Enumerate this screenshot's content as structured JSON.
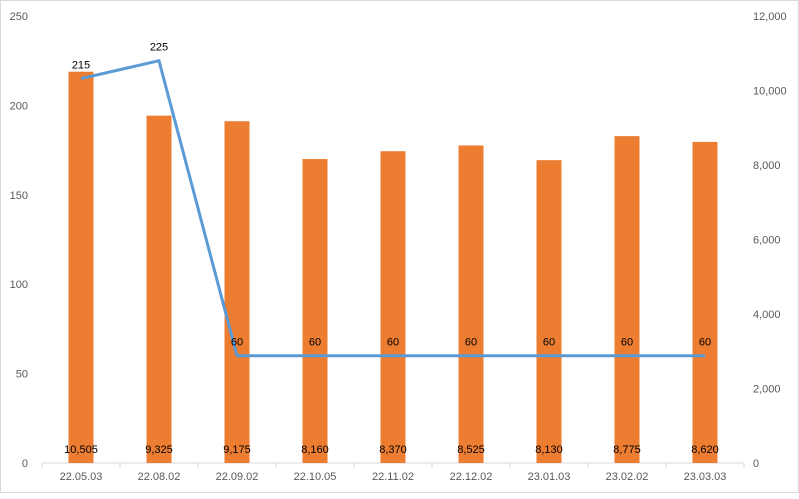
{
  "chart_data": {
    "type": "bar",
    "categories": [
      "22.05.03",
      "22.08.02",
      "22.09.02",
      "22.10.05",
      "22.11.02",
      "22.12.02",
      "23.01.03",
      "23.02.02",
      "23.03.03"
    ],
    "series": [
      {
        "type": "bar",
        "axis": "right",
        "color": "#ED7D31",
        "values": [
          10505,
          9325,
          9175,
          8160,
          8370,
          8525,
          8130,
          8775,
          8620
        ],
        "labels": [
          "10,505",
          "9,325",
          "9,175",
          "8,160",
          "8,370",
          "8,525",
          "8,130",
          "8,775",
          "8,620"
        ]
      },
      {
        "type": "line",
        "axis": "left",
        "color": "#5B9BD5",
        "values": [
          215,
          225,
          60,
          60,
          60,
          60,
          60,
          60,
          60
        ],
        "labels": [
          "215",
          "225",
          "60",
          "60",
          "60",
          "60",
          "60",
          "60",
          "60"
        ]
      }
    ],
    "y_left": {
      "min": 0,
      "max": 250,
      "ticks": [
        "0",
        "50",
        "100",
        "150",
        "200",
        "250"
      ]
    },
    "y_right": {
      "min": 0,
      "max": 12000,
      "ticks": [
        "0",
        "2,000",
        "4,000",
        "6,000",
        "8,000",
        "10,000",
        "12,000"
      ]
    },
    "grid": false,
    "legend": "none",
    "title": "",
    "xlabel": "",
    "ylabel": ""
  }
}
